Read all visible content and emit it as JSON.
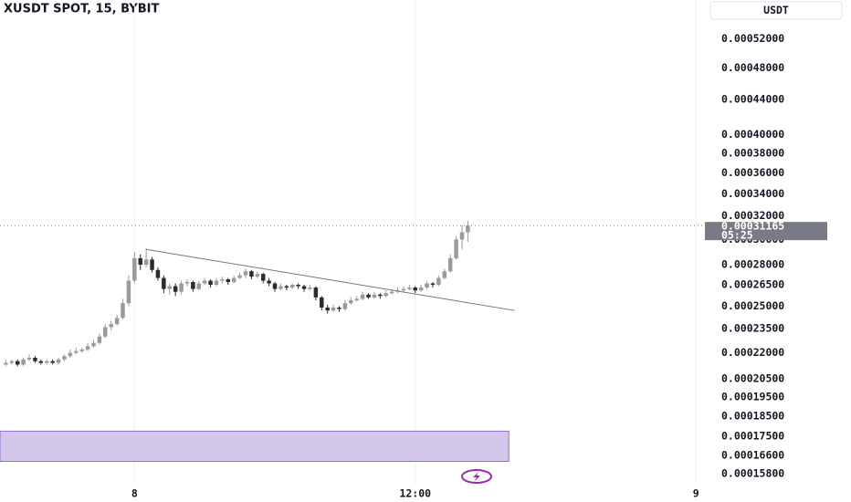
{
  "chart_data": {
    "type": "candlestick",
    "title": "XUSDT SPOT, 15, BYBIT",
    "currency": "USDT",
    "countdown": "05:25",
    "last_price": 0.00031165,
    "log_scale": true,
    "grid": "x",
    "up_color": "#9a9a9a",
    "down_color": "#2b2b2b",
    "xlim": [
      -1,
      120
    ],
    "xticks": [
      {
        "value": 22,
        "label": "8"
      },
      {
        "value": 70,
        "label": "12:00"
      },
      {
        "value": 118,
        "label": "9"
      }
    ],
    "ylim": [
      0.0001537,
      0.000578
    ],
    "yticks": [
      {
        "value": 0.00052,
        "label": "0.00052000"
      },
      {
        "value": 0.00048,
        "label": "0.00048000"
      },
      {
        "value": 0.00044,
        "label": "0.00044000"
      },
      {
        "value": 0.0004,
        "label": "0.00040000"
      },
      {
        "value": 0.00038,
        "label": "0.00038000"
      },
      {
        "value": 0.00036,
        "label": "0.00036000"
      },
      {
        "value": 0.00034,
        "label": "0.00034000"
      },
      {
        "value": 0.00032,
        "label": "0.00032000"
      },
      {
        "value": 0.0003,
        "label": "0.00030000"
      },
      {
        "value": 0.00028,
        "label": "0.00028000"
      },
      {
        "value": 0.000265,
        "label": "0.00026500"
      },
      {
        "value": 0.00025,
        "label": "0.00025000"
      },
      {
        "value": 0.000235,
        "label": "0.00023500"
      },
      {
        "value": 0.00022,
        "label": "0.00022000"
      },
      {
        "value": 0.000205,
        "label": "0.00020500"
      },
      {
        "value": 0.000195,
        "label": "0.00019500"
      },
      {
        "value": 0.000185,
        "label": "0.00018500"
      },
      {
        "value": 0.000175,
        "label": "0.00017500"
      },
      {
        "value": 0.000166,
        "label": "0.00016600"
      },
      {
        "value": 0.000158,
        "label": "0.00015800"
      }
    ],
    "open": [
      0.000213,
      0.000214,
      0.000215,
      0.000213,
      0.000216,
      0.000217,
      0.000215,
      0.000214,
      0.000215,
      0.000214,
      0.000216,
      0.000218,
      0.00022,
      0.000221,
      0.000222,
      0.000224,
      0.000226,
      0.00023,
      0.000236,
      0.000238,
      0.000242,
      0.000252,
      0.000268,
      0.000285,
      0.00028,
      0.000284,
      0.000276,
      0.00027,
      0.000262,
      0.000264,
      0.00026,
      0.000266,
      0.000267,
      0.000262,
      0.000266,
      0.000268,
      0.000265,
      0.000268,
      0.000269,
      0.000267,
      0.00027,
      0.000272,
      0.000275,
      0.000271,
      0.000273,
      0.000268,
      0.000266,
      0.000262,
      0.000264,
      0.000263,
      0.000265,
      0.000264,
      0.000262,
      0.000263,
      0.000256,
      0.000249,
      0.000247,
      0.000249,
      0.000248,
      0.000252,
      0.000254,
      0.000255,
      0.000258,
      0.000256,
      0.000258,
      0.000257,
      0.000259,
      0.00026,
      0.000261,
      0.000262,
      0.000263,
      0.000261,
      0.000263,
      0.000266,
      0.000265,
      0.00027,
      0.000275,
      0.000285,
      0.0003,
      0.000306
    ],
    "high": [
      0.000216,
      0.000216,
      0.000216,
      0.000217,
      0.000219,
      0.000218,
      0.000216,
      0.000216,
      0.000216,
      0.000217,
      0.000219,
      0.000222,
      0.000223,
      0.000223,
      0.000226,
      0.000228,
      0.000232,
      0.000238,
      0.00024,
      0.000244,
      0.000255,
      0.000272,
      0.00029,
      0.000288,
      0.000293,
      0.000286,
      0.000278,
      0.000272,
      0.000266,
      0.000266,
      0.000268,
      0.000269,
      0.000268,
      0.000268,
      0.00027,
      0.000269,
      0.00027,
      0.000271,
      0.00027,
      0.000272,
      0.000274,
      0.000277,
      0.000276,
      0.000275,
      0.000274,
      0.00027,
      0.000267,
      0.000266,
      0.000265,
      0.000266,
      0.000266,
      0.000265,
      0.000265,
      0.000264,
      0.000257,
      0.000251,
      0.000251,
      0.00025,
      0.000254,
      0.000256,
      0.000257,
      0.00026,
      0.000259,
      0.00026,
      0.000259,
      0.000261,
      0.000262,
      0.000263,
      0.000264,
      0.000265,
      0.000264,
      0.000265,
      0.000268,
      0.000267,
      0.000272,
      0.000277,
      0.000288,
      0.000303,
      0.000312,
      0.000316
    ],
    "low": [
      0.000212,
      0.000213,
      0.000212,
      0.000212,
      0.000215,
      0.000214,
      0.000213,
      0.000213,
      0.000213,
      0.000213,
      0.000215,
      0.000217,
      0.000219,
      0.00022,
      0.000221,
      0.000223,
      0.000225,
      0.000229,
      0.000234,
      0.000237,
      0.000241,
      0.00025,
      0.000266,
      0.000276,
      0.000278,
      0.000274,
      0.000268,
      0.000259,
      0.000258,
      0.000257,
      0.000258,
      0.000264,
      0.00026,
      0.000261,
      0.000265,
      0.000263,
      0.000264,
      0.000266,
      0.000265,
      0.000266,
      0.000269,
      0.00027,
      0.000269,
      0.00027,
      0.000266,
      0.000264,
      0.00026,
      0.000261,
      0.000261,
      0.000262,
      0.000262,
      0.00026,
      0.000261,
      0.000254,
      0.000247,
      0.000245,
      0.000246,
      0.000246,
      0.000247,
      0.000251,
      0.000253,
      0.000254,
      0.000255,
      0.000255,
      0.000255,
      0.000256,
      0.000258,
      0.000259,
      0.00026,
      0.000261,
      0.000259,
      0.00026,
      0.000262,
      0.000263,
      0.000264,
      0.000269,
      0.000274,
      0.000284,
      0.000292,
      0.000298
    ],
    "close": [
      0.000214,
      0.000215,
      0.000213,
      0.000216,
      0.000217,
      0.000215,
      0.000214,
      0.000215,
      0.000214,
      0.000216,
      0.000218,
      0.00022,
      0.000221,
      0.000222,
      0.000224,
      0.000226,
      0.00023,
      0.000236,
      0.000238,
      0.000242,
      0.000252,
      0.000268,
      0.000285,
      0.00028,
      0.000284,
      0.000276,
      0.00027,
      0.000262,
      0.000264,
      0.00026,
      0.000266,
      0.000267,
      0.000262,
      0.000266,
      0.000268,
      0.000265,
      0.000268,
      0.000269,
      0.000267,
      0.00027,
      0.000272,
      0.000275,
      0.000271,
      0.000273,
      0.000268,
      0.000266,
      0.000262,
      0.000264,
      0.000263,
      0.000265,
      0.000264,
      0.000262,
      0.000263,
      0.000256,
      0.000249,
      0.000247,
      0.000249,
      0.000248,
      0.000252,
      0.000254,
      0.000255,
      0.000258,
      0.000256,
      0.000258,
      0.000257,
      0.000259,
      0.00026,
      0.000261,
      0.000262,
      0.000263,
      0.000261,
      0.000263,
      0.000266,
      0.000265,
      0.00027,
      0.000275,
      0.000285,
      0.0003,
      0.000306,
      0.00031165
    ],
    "trendline": {
      "x": [
        24,
        87
      ],
      "y": [
        0.000292,
        0.000247
      ]
    },
    "zone": {
      "x": [
        -1,
        86
      ],
      "y": [
        0.0001634,
        0.0001775
      ],
      "color": "#d4c7ec"
    }
  }
}
